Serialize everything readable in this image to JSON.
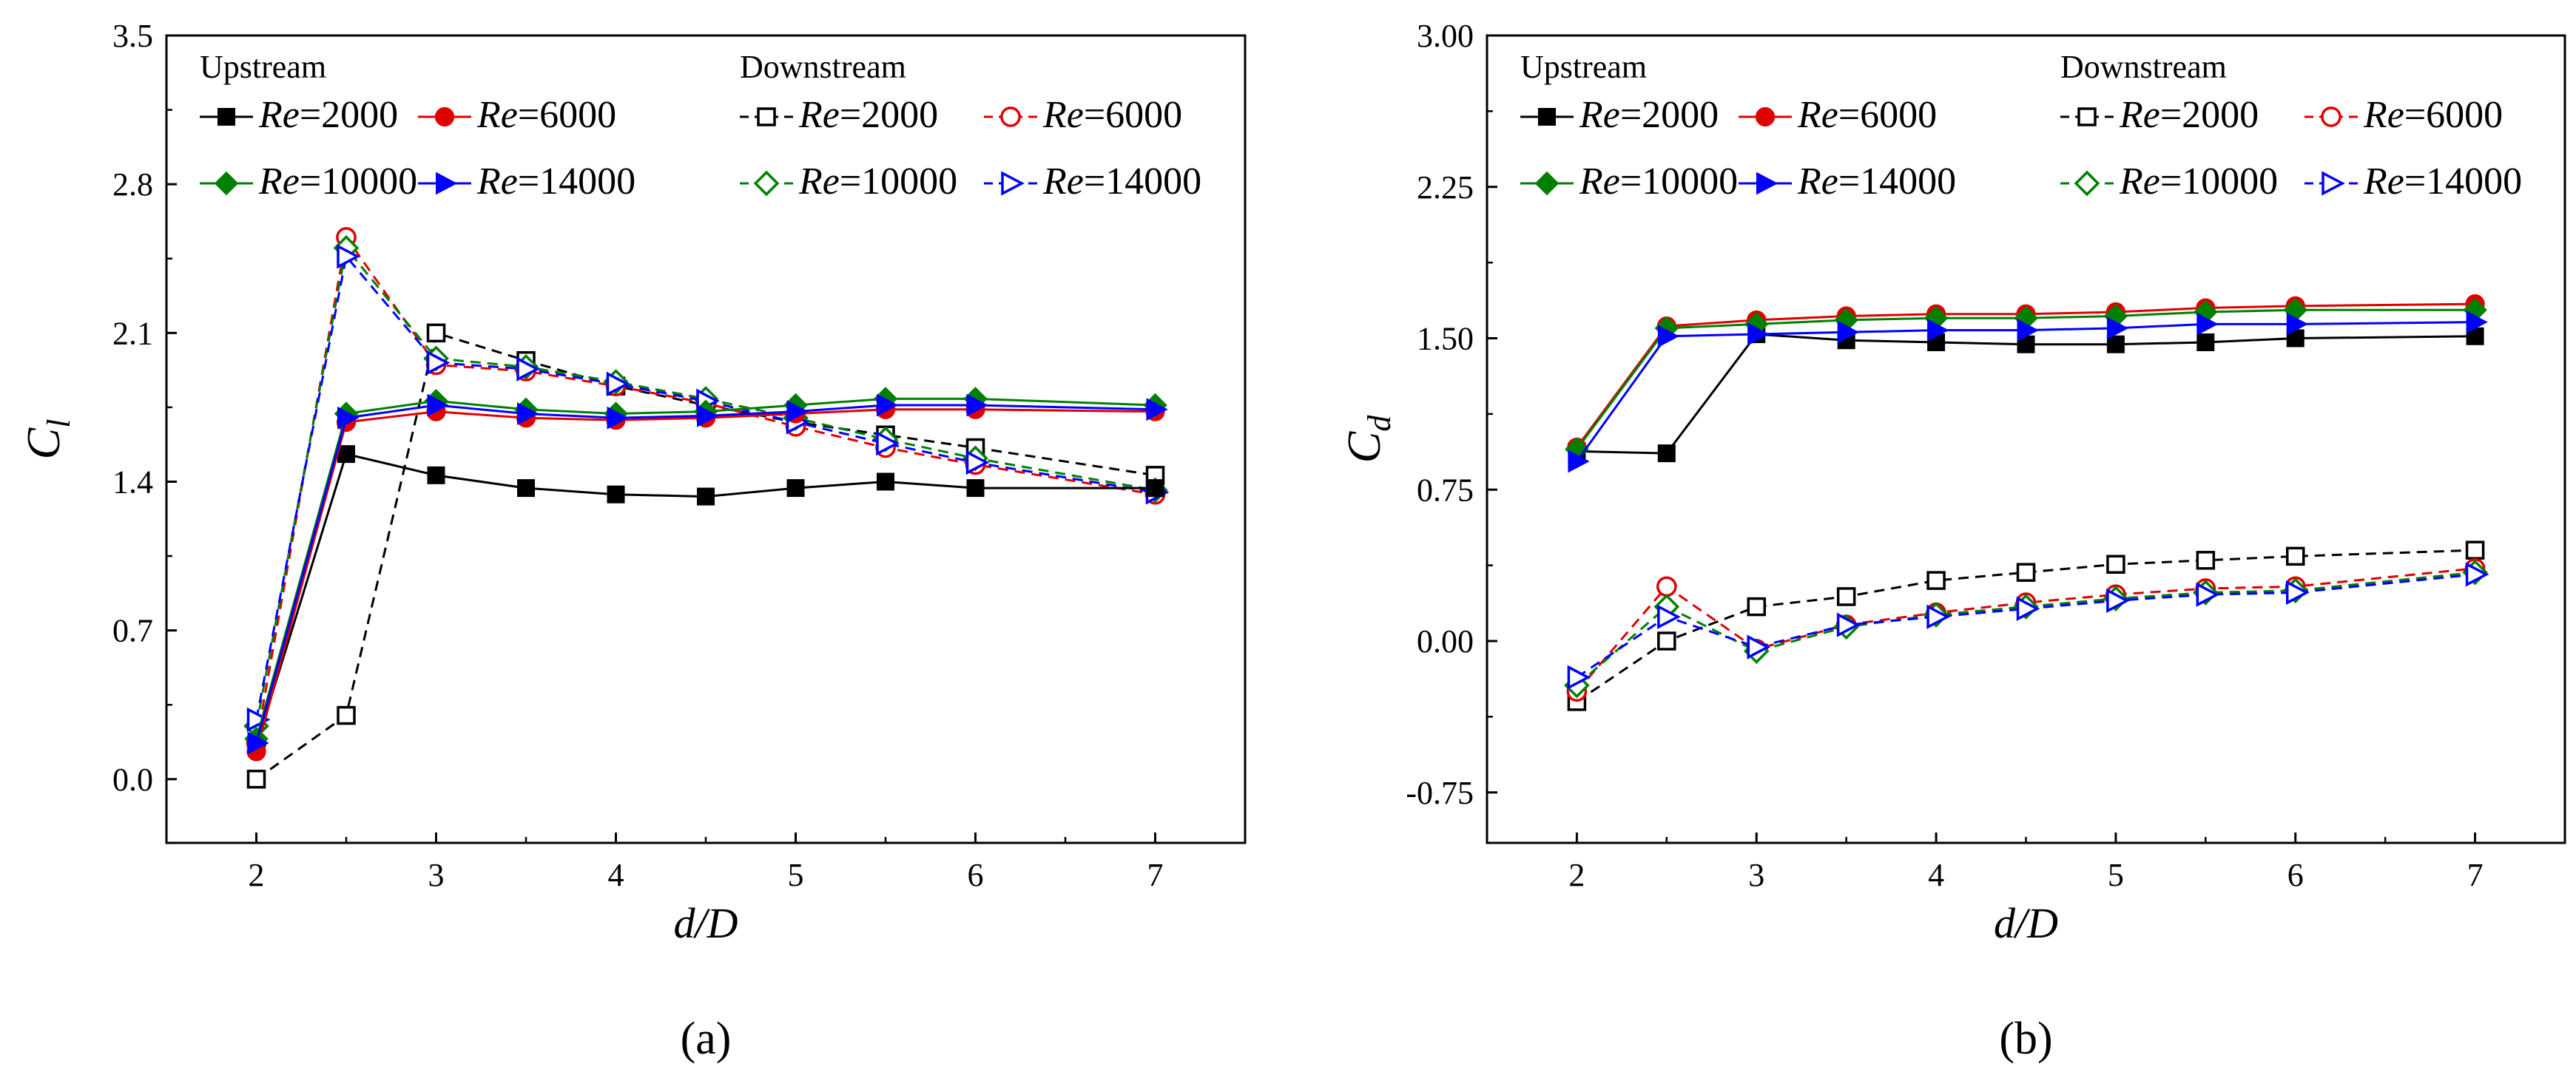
{
  "chart_data": [
    {
      "type": "line",
      "panel_label": "(a)",
      "xlabel": "d/D",
      "ylabel_main": "C",
      "ylabel_sub": "l",
      "xlim": [
        1.5,
        7.5
      ],
      "ylim": [
        -0.3,
        3.5
      ],
      "xticks": [
        2,
        3,
        4,
        5,
        6,
        7
      ],
      "yticks": [
        0.0,
        0.7,
        1.4,
        2.1,
        2.8,
        3.5
      ],
      "ytick_labels": [
        "0.0",
        "0.7",
        "1.4",
        "2.1",
        "2.8",
        "3.5"
      ],
      "grid": false,
      "legend_placement": "top",
      "legend_groups": [
        "Upstream",
        "Downstream"
      ],
      "x": [
        2,
        2.5,
        3,
        3.5,
        4,
        4.5,
        5,
        5.5,
        6,
        7
      ],
      "series": [
        {
          "name": "Re=2000",
          "group": "Upstream",
          "color": "#000000",
          "marker": "square-filled",
          "dash": "solid",
          "values": [
            0.16,
            1.53,
            1.43,
            1.37,
            1.34,
            1.33,
            1.37,
            1.4,
            1.37,
            1.37
          ]
        },
        {
          "name": "Re=6000",
          "group": "Upstream",
          "color": "#e00000",
          "marker": "circle-filled",
          "dash": "solid",
          "values": [
            0.13,
            1.68,
            1.73,
            1.7,
            1.69,
            1.7,
            1.72,
            1.74,
            1.74,
            1.73
          ]
        },
        {
          "name": "Re=10000",
          "group": "Upstream",
          "color": "#008000",
          "marker": "diamond-filled",
          "dash": "solid",
          "values": [
            0.19,
            1.72,
            1.78,
            1.74,
            1.72,
            1.73,
            1.76,
            1.79,
            1.79,
            1.76
          ]
        },
        {
          "name": "Re=14000",
          "group": "Upstream",
          "color": "#0000ff",
          "marker": "triangle-right-filled",
          "dash": "solid",
          "values": [
            0.17,
            1.7,
            1.76,
            1.72,
            1.7,
            1.71,
            1.73,
            1.76,
            1.76,
            1.74
          ]
        },
        {
          "name": "Re=2000",
          "group": "Downstream",
          "color": "#000000",
          "marker": "square-open",
          "dash": "dashed",
          "values": [
            0.0,
            0.3,
            2.1,
            1.97,
            1.85,
            1.76,
            1.68,
            1.62,
            1.56,
            1.43
          ]
        },
        {
          "name": "Re=6000",
          "group": "Downstream",
          "color": "#e00000",
          "marker": "circle-open",
          "dash": "dashed",
          "values": [
            0.17,
            2.55,
            1.95,
            1.92,
            1.85,
            1.77,
            1.66,
            1.56,
            1.48,
            1.34
          ]
        },
        {
          "name": "Re=10000",
          "group": "Downstream",
          "color": "#008000",
          "marker": "diamond-open",
          "dash": "dashed",
          "values": [
            0.25,
            2.5,
            1.98,
            1.94,
            1.87,
            1.79,
            1.7,
            1.6,
            1.51,
            1.36
          ]
        },
        {
          "name": "Re=14000",
          "group": "Downstream",
          "color": "#0000ff",
          "marker": "triangle-right-open",
          "dash": "dashed",
          "values": [
            0.28,
            2.46,
            1.96,
            1.93,
            1.86,
            1.78,
            1.68,
            1.58,
            1.49,
            1.35
          ]
        }
      ]
    },
    {
      "type": "line",
      "panel_label": "(b)",
      "xlabel": "d/D",
      "ylabel_main": "C",
      "ylabel_sub": "d",
      "xlim": [
        1.5,
        7.5
      ],
      "ylim": [
        -1.0,
        3.0
      ],
      "xticks": [
        2,
        3,
        4,
        5,
        6,
        7
      ],
      "yticks": [
        -0.75,
        0.0,
        0.75,
        1.5,
        2.25,
        3.0
      ],
      "ytick_labels": [
        "-0.75",
        "0.00",
        "0.75",
        "1.50",
        "2.25",
        "3.00"
      ],
      "grid": false,
      "legend_placement": "top",
      "legend_groups": [
        "Upstream",
        "Downstream"
      ],
      "x": [
        2,
        2.5,
        3,
        3.5,
        4,
        4.5,
        5,
        5.5,
        6,
        7
      ],
      "series": [
        {
          "name": "Re=2000",
          "group": "Upstream",
          "color": "#000000",
          "marker": "square-filled",
          "dash": "solid",
          "values": [
            0.94,
            0.93,
            1.52,
            1.49,
            1.48,
            1.47,
            1.47,
            1.48,
            1.5,
            1.51
          ]
        },
        {
          "name": "Re=6000",
          "group": "Upstream",
          "color": "#e00000",
          "marker": "circle-filled",
          "dash": "solid",
          "values": [
            0.96,
            1.56,
            1.59,
            1.61,
            1.62,
            1.62,
            1.63,
            1.65,
            1.66,
            1.67
          ]
        },
        {
          "name": "Re=10000",
          "group": "Upstream",
          "color": "#008000",
          "marker": "diamond-filled",
          "dash": "solid",
          "values": [
            0.95,
            1.55,
            1.57,
            1.59,
            1.6,
            1.6,
            1.61,
            1.63,
            1.64,
            1.64
          ]
        },
        {
          "name": "Re=14000",
          "group": "Upstream",
          "color": "#0000ff",
          "marker": "triangle-right-filled",
          "dash": "solid",
          "values": [
            0.89,
            1.51,
            1.52,
            1.53,
            1.54,
            1.54,
            1.55,
            1.57,
            1.57,
            1.58
          ]
        },
        {
          "name": "Re=2000",
          "group": "Downstream",
          "color": "#000000",
          "marker": "square-open",
          "dash": "dashed",
          "values": [
            -0.3,
            0.0,
            0.17,
            0.22,
            0.3,
            0.34,
            0.38,
            0.4,
            0.42,
            0.45
          ]
        },
        {
          "name": "Re=6000",
          "group": "Downstream",
          "color": "#e00000",
          "marker": "circle-open",
          "dash": "dashed",
          "values": [
            -0.25,
            0.27,
            -0.04,
            0.08,
            0.14,
            0.19,
            0.23,
            0.26,
            0.27,
            0.36
          ]
        },
        {
          "name": "Re=10000",
          "group": "Downstream",
          "color": "#008000",
          "marker": "diamond-open",
          "dash": "dashed",
          "values": [
            -0.22,
            0.17,
            -0.05,
            0.07,
            0.13,
            0.17,
            0.21,
            0.24,
            0.25,
            0.34
          ]
        },
        {
          "name": "Re=14000",
          "group": "Downstream",
          "color": "#0000ff",
          "marker": "triangle-right-open",
          "dash": "dashed",
          "values": [
            -0.18,
            0.12,
            -0.03,
            0.08,
            0.12,
            0.16,
            0.2,
            0.23,
            0.24,
            0.33
          ]
        }
      ]
    }
  ]
}
